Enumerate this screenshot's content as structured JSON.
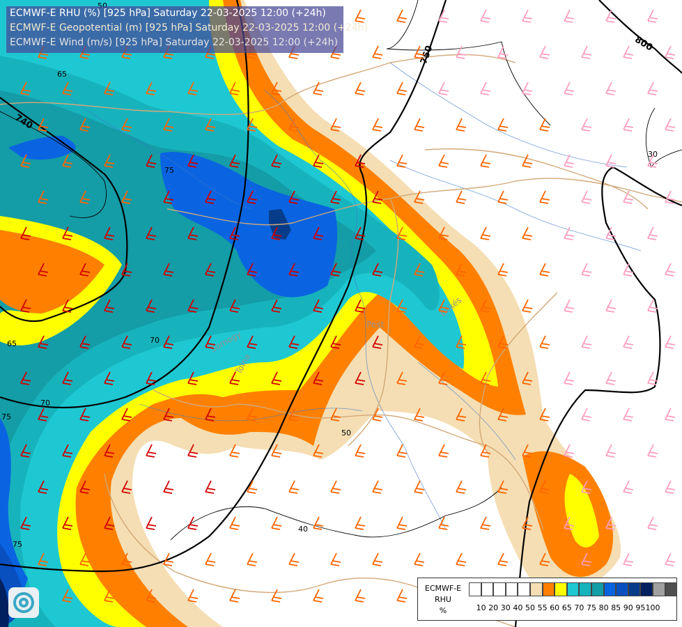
{
  "header": {
    "line1": "ECMWF-E RHU (%) [925 hPa] Saturday 22-03-2025 12:00 (+24h)",
    "line2": "ECMWF-E Geopotential (m) [925 hPa] Saturday 22-03-2025 12:00 (+24h)",
    "line3": "ECMWF-E Wind (m/s) [925 hPa] Saturday 22-03-2025 12:00 (+24h)"
  },
  "legend": {
    "title_line1": "ECMWF-E",
    "title_line2": "RHU",
    "unit": "%",
    "ticks": [
      "10",
      "20",
      "30",
      "40",
      "50",
      "55",
      "60",
      "65",
      "70",
      "75",
      "80",
      "85",
      "90",
      "95",
      "100"
    ],
    "colors": [
      "#ffffff",
      "#ffffff",
      "#ffffff",
      "#ffffff",
      "#ffffff",
      "#f5deb3",
      "#ff8000",
      "#ffff00",
      "#1ec8d2",
      "#17b3bd",
      "#149ca7",
      "#0a64e1",
      "#0850c0",
      "#063c8a",
      "#002060",
      "#a0a0a0",
      "#505050"
    ]
  },
  "geopotential_labels": [
    "740",
    "750",
    "800"
  ],
  "wind_speed_labels": [
    "30",
    "40",
    "50"
  ],
  "rhu_labels": [
    "50",
    "65",
    "70",
    "75"
  ],
  "place_labels": [
    "Pest",
    "Békés",
    "Tolna",
    "Somogy"
  ],
  "colors": {
    "line_geopotential": "#000000",
    "wind_barb_strong": "#d20000",
    "wind_barb_moderate": "#ff6400",
    "wind_barb_light": "#ff9ebe",
    "border": "#d2a878",
    "river": "#3c78c8"
  }
}
